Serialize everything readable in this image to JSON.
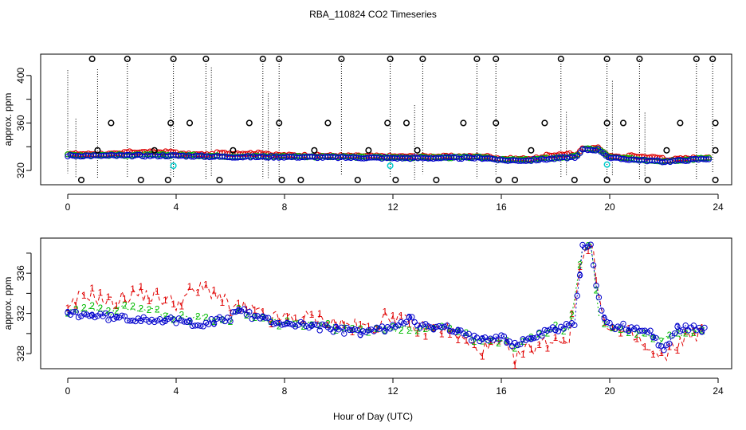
{
  "title": "RBA_110824  CO2 Timeseries",
  "xlabel": "Hour of Day (UTC)",
  "chart_data": [
    {
      "type": "scatter",
      "name": "top-panel",
      "ylabel": "approx. ppm",
      "xlim": [
        -1,
        24.5
      ],
      "ylim": [
        308,
        418
      ],
      "xticks": [
        0,
        4,
        8,
        12,
        16,
        20,
        24
      ],
      "yticks": [
        320,
        360,
        400
      ],
      "ytick_labels": [
        "320",
        "360",
        "400"
      ],
      "ytick_minor": [
        340,
        380
      ],
      "baseline": [
        [
          0,
          333
        ],
        [
          4,
          333
        ],
        [
          6,
          332
        ],
        [
          8,
          332
        ],
        [
          12,
          331
        ],
        [
          15.5,
          331
        ],
        [
          16,
          329
        ],
        [
          17,
          329
        ],
        [
          18.8,
          332
        ],
        [
          19,
          338
        ],
        [
          19.6,
          338
        ],
        [
          20,
          331
        ],
        [
          22,
          328
        ],
        [
          24,
          331
        ]
      ],
      "outlier_high": [
        0.9,
        2.2,
        3.9,
        5.1,
        7.2,
        7.8,
        10.1,
        11.9,
        13.1,
        15.1,
        15.8,
        18.2,
        19.9,
        21.1,
        23.2,
        23.8
      ],
      "outlier_mid": [
        1.6,
        3.8,
        4.5,
        6.7,
        7.8,
        9.6,
        11.8,
        12.5,
        14.6,
        15.8,
        17.6,
        19.9,
        20.5,
        22.6,
        23.9
      ],
      "outlier_low": [
        0.5,
        2.7,
        3.7,
        5.6,
        7.9,
        8.6,
        10.7,
        12.1,
        13.6,
        15.9,
        16.5,
        18.7,
        19.9,
        21.4,
        23.9
      ],
      "outlier_small": [
        1.1,
        3.2,
        6.1,
        9.1,
        11.1,
        12.9,
        17.1,
        22.1,
        23.9
      ],
      "cyan_points": [
        [
          3.9,
          324
        ],
        [
          11.9,
          324
        ],
        [
          19.9,
          325
        ]
      ]
    },
    {
      "type": "scatter",
      "name": "bottom-panel",
      "ylabel": "approx. ppm",
      "xlim": [
        -1,
        24.5
      ],
      "ylim": [
        326.5,
        339.5
      ],
      "xticks": [
        0,
        4,
        8,
        12,
        16,
        20,
        24
      ],
      "yticks": [
        328,
        332,
        336
      ],
      "ytick_labels": [
        "328",
        "332",
        "336"
      ],
      "ytick_minor": [
        330,
        334,
        338
      ],
      "series": [
        {
          "name": "1",
          "color": "#e00000",
          "points": [
            [
              0,
              332
            ],
            [
              0.4,
              333.5
            ],
            [
              0.8,
              334
            ],
            [
              1.2,
              333.5
            ],
            [
              1.6,
              333
            ],
            [
              2,
              333.5
            ],
            [
              2.5,
              334
            ],
            [
              3,
              333.8
            ],
            [
              3.5,
              333.5
            ],
            [
              4,
              333
            ],
            [
              4.5,
              334
            ],
            [
              5,
              334.5
            ],
            [
              5.5,
              334
            ],
            [
              6,
              332.5
            ],
            [
              6.5,
              332.5
            ],
            [
              7,
              332
            ],
            [
              7.5,
              331.5
            ],
            [
              8,
              331.5
            ],
            [
              9,
              331.5
            ],
            [
              10,
              331
            ],
            [
              11,
              330.5
            ],
            [
              11.5,
              331
            ],
            [
              12,
              332
            ],
            [
              12.5,
              331
            ],
            [
              13,
              330.5
            ],
            [
              14,
              330.5
            ],
            [
              14.5,
              329.5
            ],
            [
              15,
              328.5
            ],
            [
              15.5,
              328.5
            ],
            [
              16,
              329
            ],
            [
              16.5,
              327.5
            ],
            [
              17,
              328.5
            ],
            [
              17.5,
              329
            ],
            [
              18,
              329.5
            ],
            [
              18.5,
              329.5
            ],
            [
              19,
              338
            ],
            [
              19.2,
              339
            ],
            [
              19.4,
              338
            ],
            [
              19.6,
              333
            ],
            [
              20,
              330.5
            ],
            [
              20.5,
              330
            ],
            [
              21,
              329.5
            ],
            [
              21.5,
              328
            ],
            [
              22,
              327.5
            ],
            [
              22.5,
              329
            ],
            [
              23,
              330
            ],
            [
              23.6,
              330
            ]
          ]
        },
        {
          "name": "2",
          "color": "#00bb00",
          "points": [
            [
              0,
              332
            ],
            [
              0.5,
              332.5
            ],
            [
              1,
              332.5
            ],
            [
              1.5,
              332
            ],
            [
              2,
              332.5
            ],
            [
              2.5,
              332.5
            ],
            [
              3,
              332.5
            ],
            [
              3.5,
              332
            ],
            [
              4,
              331.5
            ],
            [
              5,
              331.5
            ],
            [
              6,
              331.5
            ],
            [
              6.3,
              332.5
            ],
            [
              7,
              331.5
            ],
            [
              8,
              331
            ],
            [
              9,
              331
            ],
            [
              10,
              330.5
            ],
            [
              11,
              330.2
            ],
            [
              12,
              330.5
            ],
            [
              13,
              330.5
            ],
            [
              14,
              330.5
            ],
            [
              15,
              329.5
            ],
            [
              15.5,
              329
            ],
            [
              16,
              329.5
            ],
            [
              16.5,
              328.5
            ],
            [
              17,
              329.5
            ],
            [
              18,
              330.5
            ],
            [
              18.5,
              330.5
            ],
            [
              19,
              338.5
            ],
            [
              19.3,
              339
            ],
            [
              19.6,
              332
            ],
            [
              20,
              330.5
            ],
            [
              21,
              330.2
            ],
            [
              22,
              329.5
            ],
            [
              23,
              330
            ],
            [
              23.6,
              330
            ]
          ]
        },
        {
          "name": "3",
          "color": "#0000cc",
          "points": [
            [
              0,
              332
            ],
            [
              1,
              331.8
            ],
            [
              2,
              331.5
            ],
            [
              3,
              331.5
            ],
            [
              4,
              331.2
            ],
            [
              5,
              331
            ],
            [
              6,
              331.5
            ],
            [
              6.3,
              332.5
            ],
            [
              7,
              331.5
            ],
            [
              8,
              331
            ],
            [
              9,
              330.8
            ],
            [
              10,
              330.3
            ],
            [
              11,
              330.2
            ],
            [
              12,
              330.6
            ],
            [
              12.7,
              331.8
            ],
            [
              13,
              330.7
            ],
            [
              14,
              330.5
            ],
            [
              15,
              329.5
            ],
            [
              16,
              329.8
            ],
            [
              16.5,
              328.8
            ],
            [
              17,
              329.5
            ],
            [
              18,
              330.5
            ],
            [
              18.7,
              331
            ],
            [
              19,
              338.5
            ],
            [
              19.3,
              339
            ],
            [
              19.5,
              335
            ],
            [
              19.7,
              332
            ],
            [
              20,
              330.8
            ],
            [
              21,
              330.5
            ],
            [
              21.5,
              330
            ],
            [
              22,
              328.5
            ],
            [
              22.5,
              330.5
            ],
            [
              23,
              330.5
            ],
            [
              23.6,
              330.2
            ]
          ]
        }
      ]
    }
  ]
}
